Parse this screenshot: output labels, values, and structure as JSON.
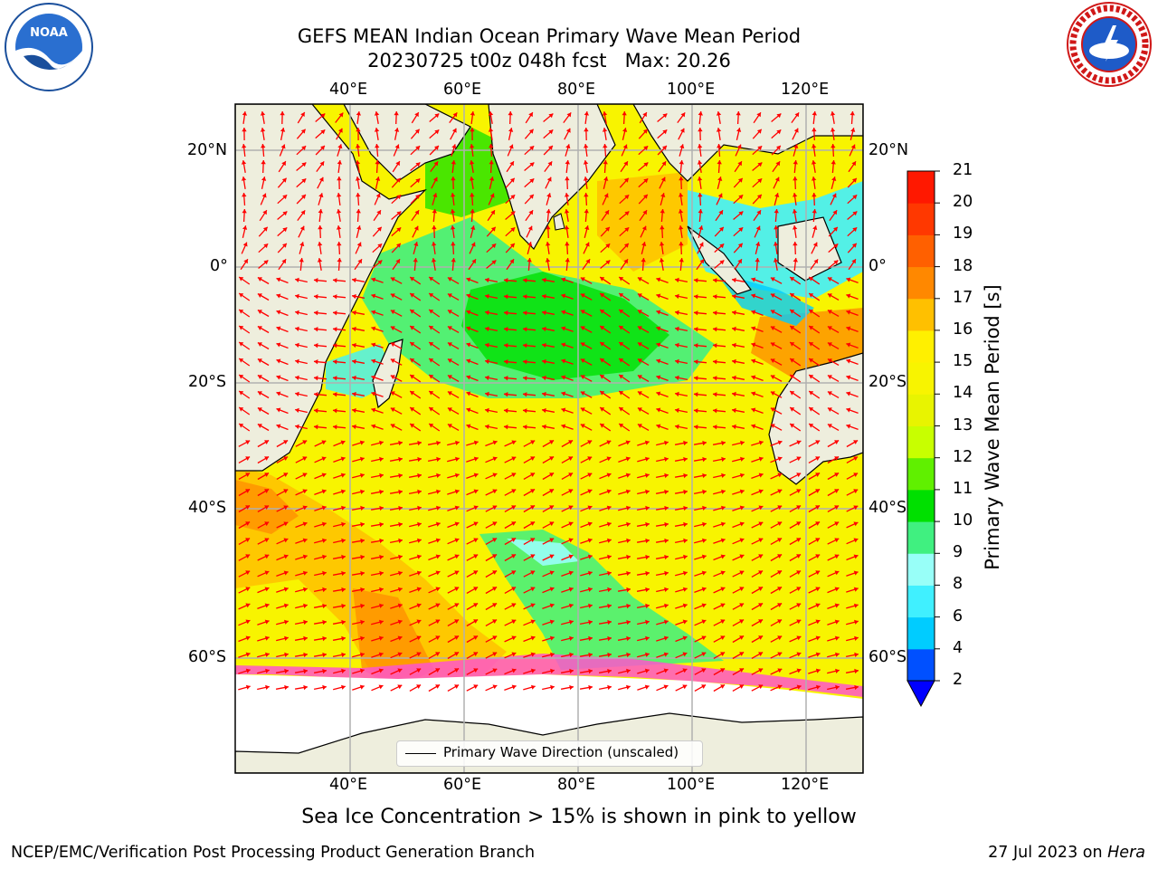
{
  "title": {
    "line1": "GEFS MEAN Indian Ocean Primary Wave Mean Period",
    "line2": "20230725 t00z 048h fcst   Max: 20.26"
  },
  "map": {
    "region": "Indian Ocean",
    "lon_range": [
      20,
      130
    ],
    "lat_range": [
      -73,
      25
    ],
    "lon_ticks": [
      "40°E",
      "60°E",
      "80°E",
      "100°E",
      "120°E"
    ],
    "lat_ticks": [
      "20°N",
      "0°",
      "20°S",
      "40°S",
      "60°S"
    ],
    "grid": true,
    "arrow_color": "#ff0000",
    "land_color": "#eeeedd"
  },
  "legend": {
    "label": "Primary Wave Direction (unscaled)",
    "placement": "lower-center"
  },
  "colorbar": {
    "title": "Primary Wave Mean Period [s]",
    "ticks": [
      "2",
      "4",
      "6",
      "8",
      "9",
      "10",
      "11",
      "12",
      "13",
      "14",
      "15",
      "16",
      "17",
      "18",
      "19",
      "20",
      "21"
    ],
    "colors": [
      "#0050ff",
      "#00ccff",
      "#40f0ff",
      "#98fff8",
      "#40f080",
      "#00e000",
      "#60f000",
      "#c8ff00",
      "#e8f400",
      "#f8f400",
      "#fff000",
      "#ffc000",
      "#ff8800",
      "#ff6000",
      "#ff3800",
      "#ff1800"
    ],
    "under_color": "#0000ff"
  },
  "note": "Sea Ice Concentration > 15% is shown in pink to yellow",
  "footer": {
    "credit": "NCEP/EMC/Verification Post Processing Product Generation Branch",
    "date": "27 Jul 2023 on",
    "machine": "Hera"
  },
  "logos": {
    "left_icon": "noaa-logo",
    "left_text": "NOAA",
    "right_icon": "national-weather-service-logo",
    "right_text": "NATIONAL WEATHER SERVICE"
  }
}
